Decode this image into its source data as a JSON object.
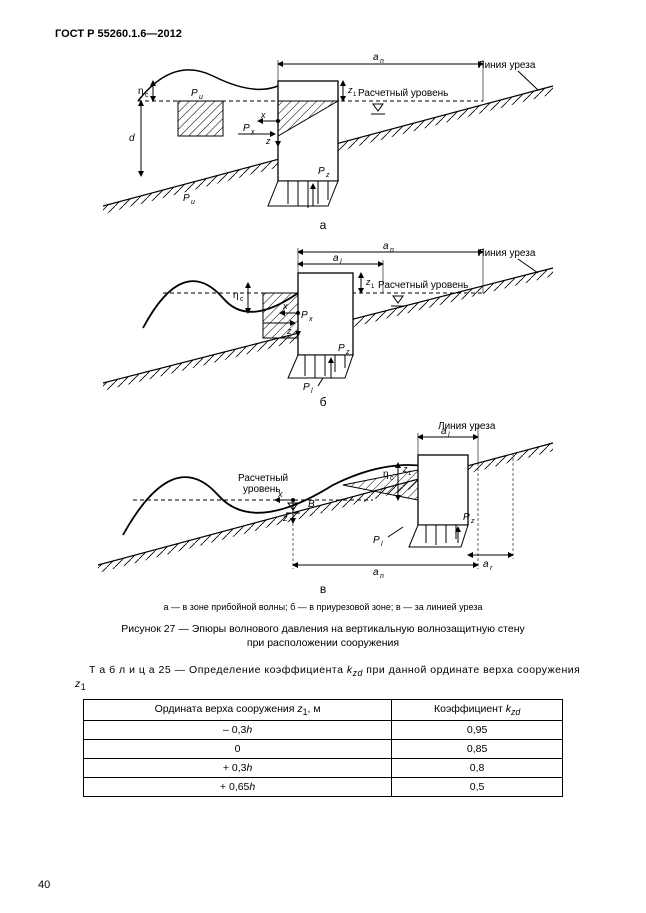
{
  "header": "ГОСТ Р 55260.1.6—2012",
  "pageNumber": "40",
  "labels": {
    "waterlineEdge": "Линия уреза",
    "designLevel": "Расчетный уровень",
    "designLevelShort": "Расчетный\nуровень",
    "a_n": "aₙ",
    "a_l": "aₗ",
    "a_r": "aᵣ",
    "Pu": "Pᵤ",
    "Px": "Pₓ",
    "Pz": "P_z",
    "Pl": "Pₗ",
    "eta_c": "ηc",
    "z1": "z₁",
    "x": "x",
    "z": "z",
    "d": "d",
    "B": "B"
  },
  "figLabels": {
    "a": "а",
    "b": "б",
    "c": "в"
  },
  "note": "а — в зоне прибойной волны; б — в приурезовой зоне; в — за линией уреза",
  "caption": "Рисунок 27 — Эпюры волнового давления на вертикальную волнозащитную стену\nпри расположении сооружения",
  "tableTitlePre": "Т а б л и ц а  25 — Определение коэффициента ",
  "tableTitleVar": "k",
  "tableTitleSub": "zd",
  "tableTitleMid": " при данной ординате верха сооружения ",
  "tableTitleZ": "z",
  "tableTitleZ1": "1",
  "table": {
    "col1": "Ордината верха сооружения z₁, м",
    "col2": "Коэффициент k_{zd}",
    "rows": [
      {
        "z": "– 0,3h",
        "k": "0,95"
      },
      {
        "z": "0",
        "k": "0,85"
      },
      {
        "z": "+ 0,3h",
        "k": "0,8"
      },
      {
        "z": "+ 0,65h",
        "k": "0,5"
      }
    ]
  },
  "style": {
    "stroke": "#000000",
    "fill_hatch": "#000000",
    "background": "#ffffff",
    "fontSizeSmall": 9,
    "fontSizeNormal": 10.5,
    "fontSizeHeader": 11
  }
}
